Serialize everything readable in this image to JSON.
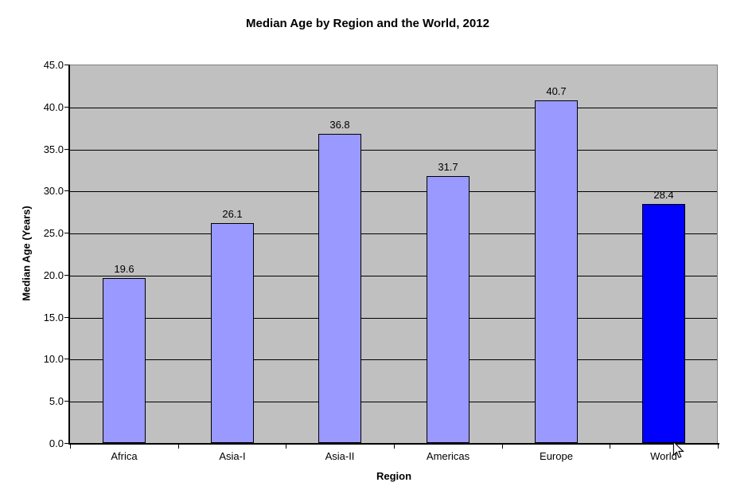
{
  "chart_data": {
    "type": "bar",
    "title": "Median Age by Region and the World, 2012",
    "xlabel": "Region",
    "ylabel": "Median Age (Years)",
    "categories": [
      "Africa",
      "Asia-I",
      "Asia-II",
      "Americas",
      "Europe",
      "World"
    ],
    "values": [
      19.6,
      26.1,
      36.8,
      31.7,
      40.7,
      28.4
    ],
    "data_labels": [
      "19.6",
      "26.1",
      "36.8",
      "31.7",
      "40.7",
      "28.4"
    ],
    "bar_colors": [
      "#9999FF",
      "#9999FF",
      "#9999FF",
      "#9999FF",
      "#9999FF",
      "#0000FF"
    ],
    "bar_border_color": "#000000",
    "ylim": [
      0,
      45
    ],
    "ytick_step": 5,
    "ytick_labels": [
      "0.0",
      "5.0",
      "10.0",
      "15.0",
      "20.0",
      "25.0",
      "30.0",
      "35.0",
      "40.0",
      "45.0"
    ],
    "grid": true,
    "legend": "none",
    "plot_background_color": "#C0C0C0",
    "gridline_color": "#000000",
    "plot_border_color": "#808080",
    "page_background_color": "#FFFFFF"
  },
  "cursor": {
    "icon": "arrow-pointer"
  }
}
